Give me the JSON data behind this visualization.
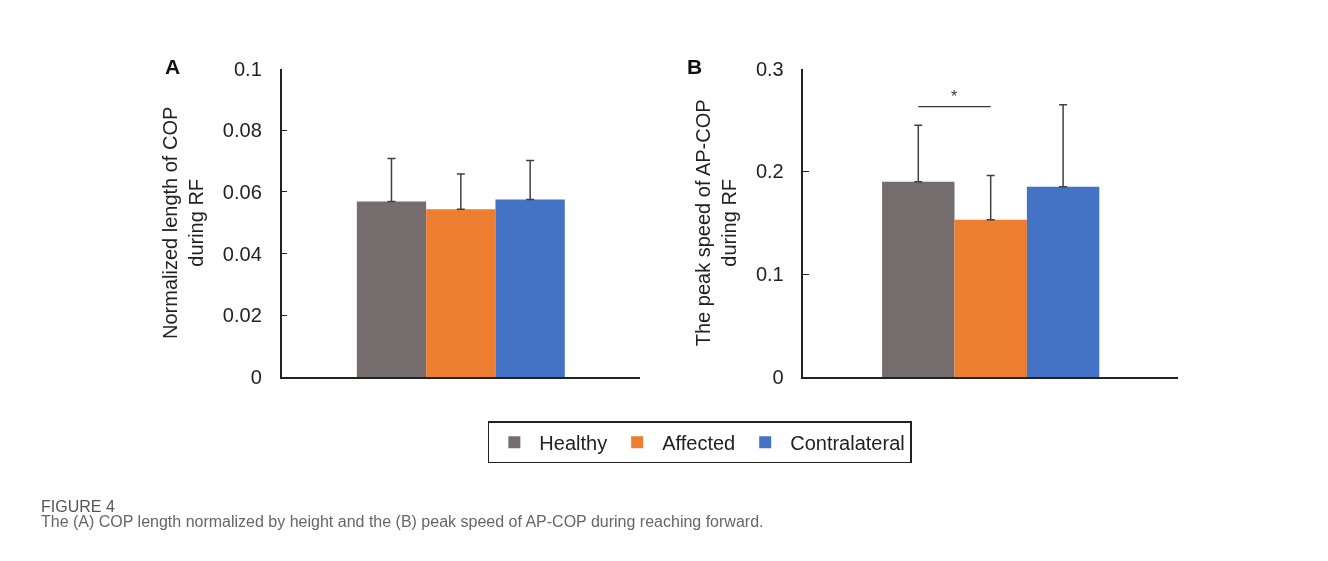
{
  "chart_data": [
    {
      "type": "bar",
      "title": "A",
      "ylabel": "Normalized length of COP\nduring RF",
      "categories": [
        null
      ],
      "series": [
        {
          "name": "Healthy",
          "color": "#756d6d",
          "values": [
            0.0569
          ],
          "errors": [
            [
              0.0569,
              0.0709
            ]
          ]
        },
        {
          "name": "Affected",
          "color": "#ed7d31",
          "values": [
            0.0544
          ],
          "errors": [
            [
              0.0544,
              0.0658
            ]
          ]
        },
        {
          "name": "Contralateral",
          "color": "#4472c4",
          "values": [
            0.0576
          ],
          "errors": [
            [
              0.0576,
              0.0702
            ]
          ]
        }
      ],
      "ylim": [
        0,
        0.1
      ],
      "yticks": [
        0,
        0.02,
        0.04,
        0.06,
        0.08,
        0.1
      ],
      "legend": "bottom",
      "annotations": [
        "FIGURE 4",
        "The (A) COP length normalized by height and the (B) peak speed of AP-COP during reaching forward."
      ]
    },
    {
      "type": "bar",
      "title": "B",
      "ylabel": "The peak speed of AP-COP\nduring RF",
      "categories": [
        null
      ],
      "series": [
        {
          "color": "#756d6d",
          "values": [
            0.19
          ],
          "errors": [
            [
              0.19,
              0.245
            ]
          ]
        },
        {
          "color": "#ed7d31",
          "values": [
            0.153
          ],
          "errors": [
            [
              0.153,
              0.196
            ]
          ]
        },
        {
          "color": "#4472c4",
          "values": [
            0.185
          ],
          "errors": [
            [
              0.185,
              0.265
            ]
          ]
        }
      ],
      "ylim": [
        0,
        0.3
      ],
      "yticks": [
        0,
        0.1,
        0.2,
        0.3
      ],
      "annotations": [
        "*"
      ]
    }
  ]
}
